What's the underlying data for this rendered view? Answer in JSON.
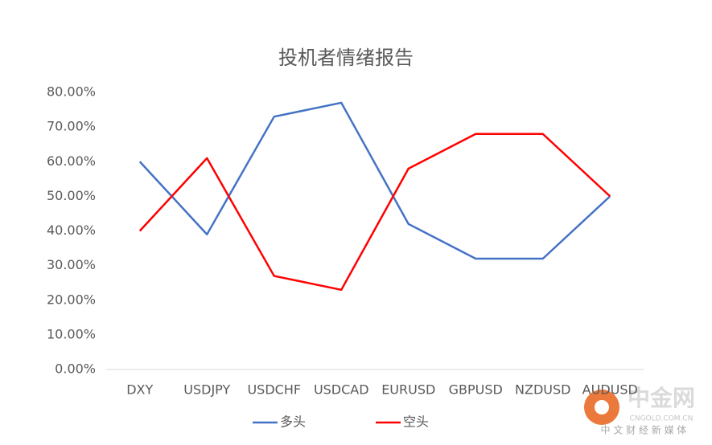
{
  "chart_data": {
    "type": "line",
    "title": "投机者情绪报告",
    "categories": [
      "DXY",
      "USDJPY",
      "USDCHF",
      "USDCAD",
      "EURUSD",
      "GBPUSD",
      "NZDUSD",
      "AUDUSD"
    ],
    "series": [
      {
        "name": "多头",
        "color": "#4472c4",
        "values": [
          60,
          39,
          73,
          77,
          42,
          32,
          32,
          50
        ]
      },
      {
        "name": "空头",
        "color": "#ff0000",
        "values": [
          40,
          61,
          27,
          23,
          58,
          68,
          68,
          50
        ]
      }
    ],
    "ylim": [
      0,
      80
    ],
    "yticks": [
      {
        "value": 0,
        "label": "0.00%"
      },
      {
        "value": 10,
        "label": "10.00%"
      },
      {
        "value": 20,
        "label": "20.00%"
      },
      {
        "value": 30,
        "label": "30.00%"
      },
      {
        "value": 40,
        "label": "40.00%"
      },
      {
        "value": 50,
        "label": "50.00%"
      },
      {
        "value": 60,
        "label": "60.00%"
      },
      {
        "value": 70,
        "label": "70.00%"
      },
      {
        "value": 80,
        "label": "80.00%"
      }
    ],
    "grid": false,
    "legend": "bottom"
  },
  "watermark": {
    "name": "中金网",
    "url": "CNGOLD.COM.CN",
    "tagline": "中 文 财 经 新 媒 体"
  }
}
